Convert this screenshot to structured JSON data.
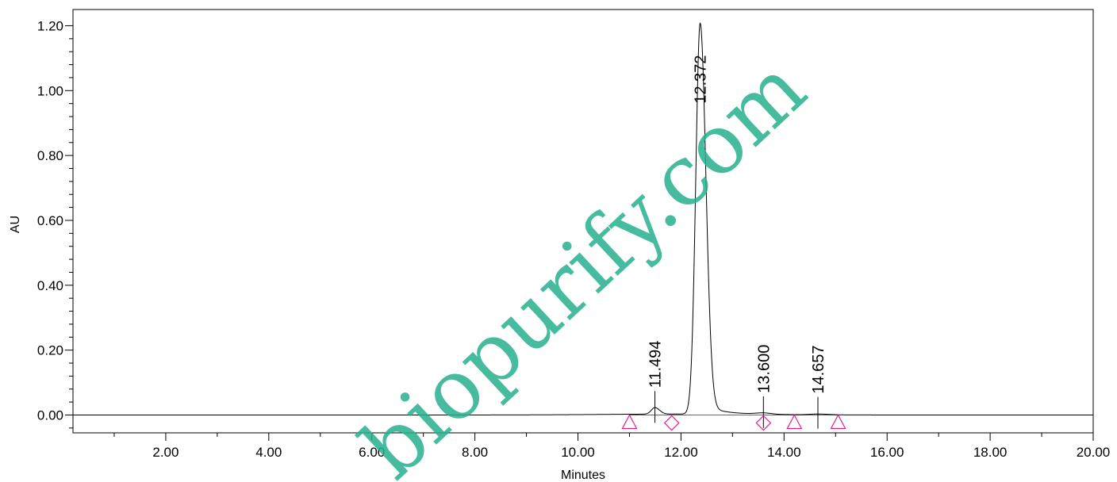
{
  "chart_data": {
    "type": "line",
    "xlabel": "Minutes",
    "ylabel": "AU",
    "xlim": [
      0.2,
      20.0
    ],
    "ylim": [
      -0.055,
      1.25
    ],
    "x_ticks": [
      "2.00",
      "4.00",
      "6.00",
      "8.00",
      "10.00",
      "12.00",
      "14.00",
      "16.00",
      "18.00",
      "20.00"
    ],
    "y_ticks": [
      "0.00",
      "0.20",
      "0.40",
      "0.60",
      "0.80",
      "1.00",
      "1.20"
    ],
    "peaks": [
      {
        "rt": "11.494",
        "x": 11.494,
        "height": 0.02
      },
      {
        "rt": "12.372",
        "x": 12.372,
        "height": 1.205
      },
      {
        "rt": "13.600",
        "x": 13.6,
        "height": 0.004
      },
      {
        "rt": "14.657",
        "x": 14.657,
        "height": 0.002
      }
    ],
    "markers": [
      {
        "shape": "triangle",
        "x": 11.0
      },
      {
        "shape": "diamond",
        "x": 11.82
      },
      {
        "shape": "diamond",
        "x": 13.6
      },
      {
        "shape": "triangle",
        "x": 14.2
      },
      {
        "shape": "triangle",
        "x": 15.05
      }
    ],
    "colors": {
      "trace": "#000000",
      "baseline": "#e0208a",
      "marker": "#e0208a",
      "watermark": "#27b08d"
    },
    "watermark": "biopurify.com"
  }
}
